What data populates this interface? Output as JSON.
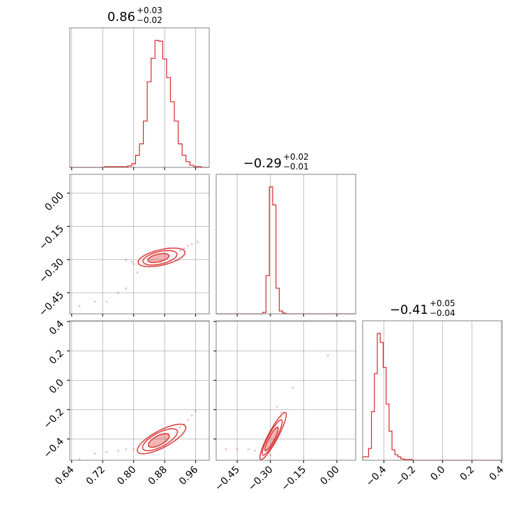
{
  "chart_data": {
    "type": "corner",
    "color": "#d62728",
    "grid": true,
    "parameters": [
      {
        "title": {
          "median": "0.86",
          "plus": "+0.03",
          "minus": "−0.02"
        },
        "range": [
          0.635,
          0.995
        ],
        "ticks": [
          0.64,
          0.72,
          0.8,
          0.88,
          0.96
        ],
        "tick_labels": [
          "0.64",
          "0.72",
          "0.80",
          "0.88",
          "0.96"
        ],
        "hist": {
          "bins": [
            0.635,
            0.645,
            0.655,
            0.665,
            0.675,
            0.685,
            0.695,
            0.705,
            0.715,
            0.725,
            0.735,
            0.745,
            0.755,
            0.765,
            0.775,
            0.785,
            0.795,
            0.805,
            0.815,
            0.825,
            0.835,
            0.845,
            0.855,
            0.865,
            0.875,
            0.885,
            0.895,
            0.905,
            0.915,
            0.925,
            0.935,
            0.945,
            0.955,
            0.965,
            0.975,
            0.985,
            0.995
          ],
          "counts": [
            0,
            0,
            0,
            0,
            0,
            0,
            0,
            0,
            0,
            1,
            1,
            1,
            1,
            1,
            1,
            2,
            5,
            17,
            33,
            65,
            120,
            153,
            178,
            177,
            152,
            126,
            92,
            65,
            33,
            17,
            8,
            3,
            1,
            1,
            0,
            0
          ]
        }
      },
      {
        "title": {
          "median": "−0.29",
          "plus": "+0.02",
          "minus": "−0.01"
        },
        "range": [
          -0.545,
          0.085
        ],
        "ticks": [
          -0.45,
          -0.3,
          -0.15,
          0.0
        ],
        "tick_labels": [
          "−0.45",
          "−0.30",
          "−0.15",
          "0.00"
        ],
        "hist": {
          "bins": [
            -0.545,
            -0.53,
            -0.515,
            -0.5,
            -0.485,
            -0.47,
            -0.455,
            -0.44,
            -0.425,
            -0.41,
            -0.395,
            -0.38,
            -0.365,
            -0.35,
            -0.335,
            -0.32,
            -0.305,
            -0.29,
            -0.275,
            -0.26,
            -0.245,
            -0.23,
            -0.215,
            -0.2,
            -0.185,
            -0.17,
            -0.155,
            -0.14,
            -0.125,
            -0.11,
            -0.095,
            -0.08,
            -0.065,
            -0.05,
            -0.035,
            -0.02,
            -0.005,
            0.01,
            0.025,
            0.04,
            0.055,
            0.07,
            0.085
          ],
          "counts": [
            0,
            0,
            0,
            0,
            0,
            0,
            0,
            0,
            0,
            0,
            0,
            0,
            0,
            0,
            2,
            55,
            183,
            157,
            37,
            4,
            1,
            0,
            0,
            0,
            0,
            0,
            0,
            0,
            0,
            0,
            0,
            0,
            0,
            0,
            0,
            0,
            0,
            0,
            0,
            0,
            0,
            0
          ]
        }
      },
      {
        "title": {
          "median": "−0.41",
          "plus": "+0.05",
          "minus": "−0.04"
        },
        "range": [
          -0.545,
          0.405
        ],
        "ticks": [
          -0.4,
          -0.2,
          0.0,
          0.2,
          0.4
        ],
        "tick_labels": [
          "−0.4",
          "−0.2",
          "0.0",
          "0.2",
          "0.4"
        ],
        "hist": {
          "bins": [
            -0.545,
            -0.525,
            -0.505,
            -0.485,
            -0.465,
            -0.445,
            -0.425,
            -0.405,
            -0.385,
            -0.365,
            -0.345,
            -0.325,
            -0.305,
            -0.285,
            -0.265,
            -0.245,
            -0.225,
            -0.205,
            -0.185,
            -0.165,
            -0.145,
            -0.125,
            -0.105,
            -0.085,
            -0.065,
            -0.045,
            -0.025,
            -0.005,
            0.015,
            0.035,
            0.055,
            0.075,
            0.095,
            0.115,
            0.135,
            0.155,
            0.175,
            0.195,
            0.215,
            0.235,
            0.255,
            0.275,
            0.295,
            0.315,
            0.335,
            0.355,
            0.375,
            0.395
          ],
          "counts": [
            5,
            5,
            17,
            70,
            125,
            183,
            170,
            134,
            81,
            42,
            15,
            8,
            5,
            2,
            1,
            1,
            1,
            0,
            0,
            0,
            0,
            0,
            0,
            0,
            0,
            0,
            0,
            0,
            0,
            0,
            0,
            0,
            0,
            0,
            0,
            0,
            0,
            0,
            0,
            0,
            0,
            0,
            0,
            0,
            0,
            0,
            0
          ]
        }
      }
    ],
    "pairs": [
      {
        "x_param": 0,
        "y_param": 1,
        "contours": [
          {
            "center": [
              0.864,
              -0.293
            ],
            "semi_major": 0.028,
            "semi_minor": 0.01,
            "angle_deg": 13
          },
          {
            "center": [
              0.868,
              -0.292
            ],
            "semi_major": 0.045,
            "semi_minor": 0.016,
            "angle_deg": 13
          },
          {
            "center": [
              0.872,
              -0.29
            ],
            "semi_major": 0.062,
            "semi_minor": 0.02,
            "angle_deg": 13
          }
        ],
        "outliers": [
          [
            0.66,
            -0.51
          ],
          [
            0.7,
            -0.49
          ],
          [
            0.73,
            -0.49
          ],
          [
            0.76,
            -0.45
          ],
          [
            0.78,
            -0.43
          ],
          [
            0.78,
            -0.3
          ],
          [
            0.795,
            -0.31
          ],
          [
            0.93,
            -0.25
          ],
          [
            0.95,
            -0.23
          ],
          [
            0.965,
            -0.22
          ],
          [
            0.94,
            -0.24
          ],
          [
            0.92,
            -0.26
          ],
          [
            0.81,
            -0.36
          ],
          [
            0.8,
            -0.32
          ]
        ]
      },
      {
        "x_param": 0,
        "y_param": 2,
        "contours": [
          {
            "center": [
              0.865,
              -0.41
            ],
            "semi_major": 0.03,
            "semi_minor": 0.012,
            "angle_deg": 28
          },
          {
            "center": [
              0.868,
              -0.405
            ],
            "semi_major": 0.05,
            "semi_minor": 0.018,
            "angle_deg": 28
          },
          {
            "center": [
              0.872,
              -0.4
            ],
            "semi_major": 0.07,
            "semi_minor": 0.022,
            "angle_deg": 28
          }
        ],
        "outliers": [
          [
            0.66,
            -0.54
          ],
          [
            0.7,
            -0.5
          ],
          [
            0.73,
            -0.49
          ],
          [
            0.76,
            -0.48
          ],
          [
            0.78,
            -0.47
          ],
          [
            0.8,
            -0.47
          ],
          [
            0.93,
            -0.3
          ],
          [
            0.95,
            -0.24
          ],
          [
            0.96,
            -0.21
          ],
          [
            0.94,
            -0.27
          ],
          [
            0.92,
            -0.32
          ]
        ]
      },
      {
        "x_param": 1,
        "y_param": 2,
        "contours": [
          {
            "center": [
              -0.295,
              -0.4
            ],
            "semi_major": 0.06,
            "semi_minor": 0.012,
            "angle_deg": 62
          },
          {
            "center": [
              -0.292,
              -0.39
            ],
            "semi_major": 0.09,
            "semi_minor": 0.018,
            "angle_deg": 62
          },
          {
            "center": [
              -0.288,
              -0.38
            ],
            "semi_major": 0.12,
            "semi_minor": 0.022,
            "angle_deg": 62
          }
        ],
        "outliers": [
          [
            -0.5,
            -0.47
          ],
          [
            -0.45,
            -0.47
          ],
          [
            -0.4,
            -0.47
          ],
          [
            -0.37,
            -0.48
          ],
          [
            -0.3,
            -0.51
          ],
          [
            -0.25,
            -0.22
          ],
          [
            -0.27,
            -0.18
          ],
          [
            -0.2,
            -0.05
          ],
          [
            -0.04,
            0.17
          ],
          [
            -0.25,
            -0.25
          ]
        ]
      }
    ]
  }
}
